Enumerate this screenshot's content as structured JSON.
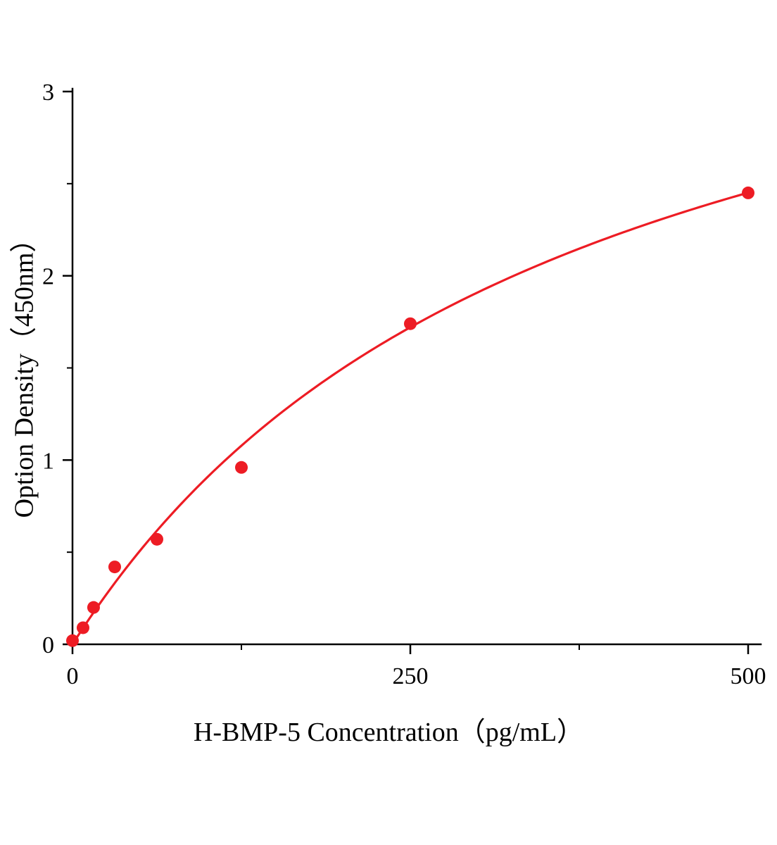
{
  "chart_data": {
    "type": "scatter",
    "title": "",
    "xlabel": "H-BMP-5 Concentration（pg/mL）",
    "ylabel": "Option Density（450nm）",
    "x": [
      0,
      7.8,
      15.6,
      31.25,
      62.5,
      125,
      250,
      500
    ],
    "y": [
      0.02,
      0.09,
      0.2,
      0.42,
      0.57,
      0.96,
      1.74,
      2.45
    ],
    "xlim": [
      0,
      500
    ],
    "ylim": [
      0,
      3
    ],
    "x_major_ticks": [
      0,
      250,
      500
    ],
    "x_minor_ticks": [
      125,
      375
    ],
    "y_major_ticks": [
      0,
      1,
      2,
      3
    ],
    "y_minor_ticks": [
      0.5,
      1.5,
      2.5
    ],
    "grid": false,
    "legend": "none",
    "marker_color": "#ed1c24",
    "line_color": "#ed1c24",
    "axis_color": "#000000",
    "fit": {
      "type": "saturation",
      "formula": "y = vmax * x / (k + x)",
      "vmax": 4.26,
      "k": 369
    }
  }
}
